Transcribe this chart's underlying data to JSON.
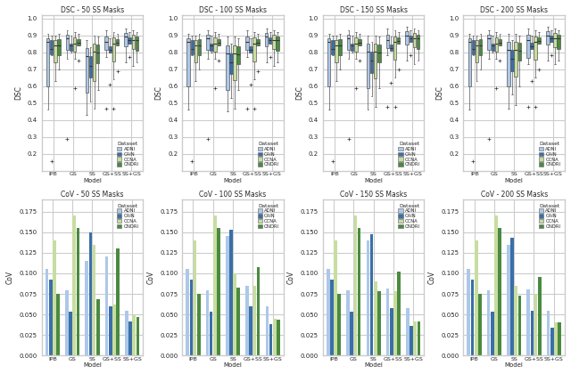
{
  "titles_top": [
    "DSC - 50 SS Masks",
    "DSC - 100 SS Masks",
    "DSC - 150 SS Masks",
    "DSC - 200 SS Masks"
  ],
  "titles_bot": [
    "CoV - 50 SS Masks",
    "CoV - 100 SS Masks",
    "CoV - 150 SS Masks",
    "CoV - 200 SS Masks"
  ],
  "models": [
    "IPB",
    "GS",
    "SS",
    "GS+SS",
    "SS+GS"
  ],
  "datasets": [
    "ADNI",
    "CAIN",
    "CCNA",
    "ONDRI"
  ],
  "colors": [
    "#adc8e8",
    "#3a6fa8",
    "#c8dda0",
    "#4a8a40"
  ],
  "ylabel_top": "DSC",
  "ylabel_bot": "CoV",
  "xlabel": "Model",
  "dsc_ylim": [
    0.1,
    1.02
  ],
  "dsc_yticks": [
    0.2,
    0.3,
    0.4,
    0.5,
    0.6,
    0.7,
    0.8,
    0.9,
    1.0
  ],
  "dsc_data": {
    "50": {
      "IPB": {
        "ADNI": [
          0.88,
          0.84,
          0.86,
          0.87,
          0.89,
          0.91,
          0.58,
          0.6,
          0.46
        ],
        "CAIN": [
          0.88,
          0.8,
          0.78,
          0.82,
          0.86,
          0.9,
          0.16
        ],
        "CCNA": [
          0.87,
          0.83,
          0.85,
          0.88,
          0.9,
          0.75,
          0.72,
          0.63
        ],
        "ONDRI": [
          0.87,
          0.83,
          0.84,
          0.88,
          0.91,
          0.74,
          0.7
        ]
      },
      "GS": {
        "ADNI": [
          0.9,
          0.87,
          0.88,
          0.91,
          0.93,
          0.76,
          0.29
        ],
        "CAIN": [
          0.84,
          0.8,
          0.81,
          0.85,
          0.9
        ],
        "CCNA": [
          0.88,
          0.85,
          0.85,
          0.89,
          0.92,
          0.76,
          0.59
        ],
        "ONDRI": [
          0.87,
          0.84,
          0.84,
          0.88,
          0.91,
          0.75
        ]
      },
      "SS": {
        "ADNI": [
          0.82,
          0.78,
          0.77,
          0.83,
          0.87,
          0.57,
          0.53,
          0.43
        ],
        "CAIN": [
          0.77,
          0.72,
          0.71,
          0.78,
          0.83,
          0.59,
          0.51
        ],
        "CCNA": [
          0.85,
          0.81,
          0.8,
          0.86,
          0.9,
          0.65,
          0.57,
          0.47
        ],
        "ONDRI": [
          0.84,
          0.8,
          0.79,
          0.85,
          0.89,
          0.68,
          0.58
        ]
      },
      "GS+SS": {
        "ADNI": [
          0.89,
          0.86,
          0.86,
          0.9,
          0.93,
          0.77,
          0.47
        ],
        "CAIN": [
          0.83,
          0.8,
          0.8,
          0.84,
          0.88,
          0.61
        ],
        "CCNA": [
          0.88,
          0.85,
          0.85,
          0.89,
          0.92,
          0.64,
          0.47
        ],
        "ONDRI": [
          0.87,
          0.84,
          0.84,
          0.88,
          0.91,
          0.69
        ]
      },
      "SS+GS": {
        "ADNI": [
          0.91,
          0.88,
          0.89,
          0.92,
          0.94,
          0.79,
          0.74
        ],
        "CAIN": [
          0.88,
          0.85,
          0.86,
          0.89,
          0.92,
          0.77
        ],
        "CCNA": [
          0.9,
          0.87,
          0.87,
          0.91,
          0.93,
          0.77,
          0.72
        ],
        "ONDRI": [
          0.89,
          0.86,
          0.87,
          0.9,
          0.92,
          0.76,
          0.74
        ]
      }
    },
    "100": {
      "IPB": {
        "ADNI": [
          0.88,
          0.84,
          0.86,
          0.87,
          0.89,
          0.91,
          0.58,
          0.6,
          0.46
        ],
        "CAIN": [
          0.88,
          0.8,
          0.78,
          0.82,
          0.86,
          0.9,
          0.16
        ],
        "CCNA": [
          0.87,
          0.83,
          0.85,
          0.88,
          0.9,
          0.75,
          0.72,
          0.63
        ],
        "ONDRI": [
          0.87,
          0.83,
          0.84,
          0.88,
          0.91,
          0.74,
          0.7
        ]
      },
      "GS": {
        "ADNI": [
          0.9,
          0.87,
          0.88,
          0.91,
          0.93,
          0.76,
          0.29
        ],
        "CAIN": [
          0.84,
          0.8,
          0.81,
          0.85,
          0.9
        ],
        "CCNA": [
          0.88,
          0.85,
          0.85,
          0.89,
          0.92,
          0.76,
          0.59
        ],
        "ONDRI": [
          0.87,
          0.84,
          0.84,
          0.88,
          0.91,
          0.75
        ]
      },
      "SS": {
        "ADNI": [
          0.84,
          0.8,
          0.79,
          0.85,
          0.89,
          0.59,
          0.55,
          0.45
        ],
        "CAIN": [
          0.79,
          0.74,
          0.73,
          0.8,
          0.85,
          0.61,
          0.53
        ],
        "CCNA": [
          0.84,
          0.8,
          0.79,
          0.85,
          0.89,
          0.65,
          0.59,
          0.47
        ],
        "ONDRI": [
          0.83,
          0.79,
          0.78,
          0.84,
          0.88,
          0.68,
          0.58
        ]
      },
      "GS+SS": {
        "ADNI": [
          0.89,
          0.86,
          0.86,
          0.9,
          0.93,
          0.77,
          0.47
        ],
        "CAIN": [
          0.83,
          0.8,
          0.8,
          0.84,
          0.88,
          0.61
        ],
        "CCNA": [
          0.88,
          0.85,
          0.85,
          0.89,
          0.92,
          0.64,
          0.47
        ],
        "ONDRI": [
          0.87,
          0.84,
          0.84,
          0.88,
          0.91,
          0.69
        ]
      },
      "SS+GS": {
        "ADNI": [
          0.91,
          0.88,
          0.89,
          0.92,
          0.94,
          0.79,
          0.74
        ],
        "CAIN": [
          0.88,
          0.85,
          0.86,
          0.89,
          0.92,
          0.77
        ],
        "CCNA": [
          0.9,
          0.87,
          0.87,
          0.91,
          0.93,
          0.77,
          0.72
        ],
        "ONDRI": [
          0.89,
          0.86,
          0.87,
          0.9,
          0.92,
          0.76,
          0.74
        ]
      }
    },
    "150": {
      "IPB": {
        "ADNI": [
          0.88,
          0.84,
          0.86,
          0.87,
          0.89,
          0.91,
          0.58,
          0.6,
          0.46
        ],
        "CAIN": [
          0.88,
          0.8,
          0.78,
          0.82,
          0.86,
          0.9,
          0.16
        ],
        "CCNA": [
          0.87,
          0.83,
          0.85,
          0.88,
          0.9,
          0.75,
          0.72,
          0.63
        ],
        "ONDRI": [
          0.87,
          0.83,
          0.84,
          0.88,
          0.91,
          0.74,
          0.7
        ]
      },
      "GS": {
        "ADNI": [
          0.9,
          0.87,
          0.88,
          0.91,
          0.93,
          0.76,
          0.29
        ],
        "CAIN": [
          0.84,
          0.8,
          0.81,
          0.85,
          0.9
        ],
        "CCNA": [
          0.88,
          0.85,
          0.85,
          0.89,
          0.92,
          0.76,
          0.59
        ],
        "ONDRI": [
          0.87,
          0.84,
          0.84,
          0.88,
          0.91,
          0.75
        ]
      },
      "SS": {
        "ADNI": [
          0.85,
          0.81,
          0.8,
          0.86,
          0.9,
          0.6,
          0.56,
          0.46
        ],
        "CAIN": [
          0.8,
          0.75,
          0.74,
          0.81,
          0.86,
          0.62,
          0.54
        ],
        "CCNA": [
          0.85,
          0.81,
          0.8,
          0.86,
          0.9,
          0.66,
          0.6,
          0.48
        ],
        "ONDRI": [
          0.84,
          0.8,
          0.79,
          0.85,
          0.89,
          0.69,
          0.59
        ]
      },
      "GS+SS": {
        "ADNI": [
          0.9,
          0.87,
          0.87,
          0.91,
          0.94,
          0.78,
          0.48
        ],
        "CAIN": [
          0.84,
          0.81,
          0.81,
          0.85,
          0.89,
          0.62
        ],
        "CCNA": [
          0.89,
          0.86,
          0.86,
          0.9,
          0.93,
          0.65,
          0.48
        ],
        "ONDRI": [
          0.88,
          0.85,
          0.85,
          0.89,
          0.92,
          0.7
        ]
      },
      "SS+GS": {
        "ADNI": [
          0.92,
          0.89,
          0.9,
          0.93,
          0.95,
          0.8,
          0.75
        ],
        "CAIN": [
          0.89,
          0.86,
          0.87,
          0.9,
          0.93,
          0.78
        ],
        "CCNA": [
          0.91,
          0.88,
          0.88,
          0.92,
          0.94,
          0.78,
          0.73
        ],
        "ONDRI": [
          0.9,
          0.87,
          0.88,
          0.91,
          0.93,
          0.77,
          0.75
        ]
      }
    },
    "200": {
      "IPB": {
        "ADNI": [
          0.88,
          0.84,
          0.86,
          0.87,
          0.89,
          0.91,
          0.58,
          0.6,
          0.46
        ],
        "CAIN": [
          0.88,
          0.8,
          0.78,
          0.82,
          0.86,
          0.9,
          0.16
        ],
        "CCNA": [
          0.87,
          0.83,
          0.85,
          0.88,
          0.9,
          0.75,
          0.72,
          0.63
        ],
        "ONDRI": [
          0.87,
          0.83,
          0.84,
          0.88,
          0.91,
          0.74,
          0.7
        ]
      },
      "GS": {
        "ADNI": [
          0.9,
          0.87,
          0.88,
          0.91,
          0.93,
          0.76,
          0.29
        ],
        "CAIN": [
          0.84,
          0.8,
          0.81,
          0.85,
          0.9
        ],
        "CCNA": [
          0.88,
          0.85,
          0.85,
          0.89,
          0.92,
          0.76,
          0.59
        ],
        "ONDRI": [
          0.87,
          0.84,
          0.84,
          0.88,
          0.91,
          0.75
        ]
      },
      "SS": {
        "ADNI": [
          0.86,
          0.82,
          0.81,
          0.87,
          0.91,
          0.61,
          0.57,
          0.47
        ],
        "CAIN": [
          0.81,
          0.76,
          0.75,
          0.82,
          0.87,
          0.63,
          0.55
        ],
        "CCNA": [
          0.86,
          0.82,
          0.81,
          0.87,
          0.91,
          0.67,
          0.61,
          0.49
        ],
        "ONDRI": [
          0.85,
          0.81,
          0.8,
          0.86,
          0.9,
          0.7,
          0.6
        ]
      },
      "GS+SS": {
        "ADNI": [
          0.9,
          0.87,
          0.87,
          0.91,
          0.94,
          0.78,
          0.73,
          0.48
        ],
        "CAIN": [
          0.85,
          0.82,
          0.82,
          0.86,
          0.9,
          0.63
        ],
        "CCNA": [
          0.89,
          0.86,
          0.86,
          0.9,
          0.93,
          0.65,
          0.48
        ],
        "ONDRI": [
          0.88,
          0.85,
          0.85,
          0.89,
          0.92,
          0.7
        ]
      },
      "SS+GS": {
        "ADNI": [
          0.92,
          0.89,
          0.9,
          0.93,
          0.95,
          0.8,
          0.75
        ],
        "CAIN": [
          0.89,
          0.86,
          0.87,
          0.9,
          0.93,
          0.78
        ],
        "CCNA": [
          0.91,
          0.88,
          0.88,
          0.92,
          0.94,
          0.78,
          0.73
        ],
        "ONDRI": [
          0.9,
          0.87,
          0.88,
          0.91,
          0.93,
          0.77,
          0.75
        ]
      }
    }
  },
  "cov_data": {
    "50": {
      "IPB": {
        "ADNI": 0.105,
        "CAIN": 0.092,
        "CCNA": 0.14,
        "ONDRI": 0.075
      },
      "GS": {
        "ADNI": 0.079,
        "CAIN": 0.053,
        "CCNA": 0.17,
        "ONDRI": 0.155
      },
      "SS": {
        "ADNI": 0.115,
        "CAIN": 0.15,
        "CCNA": 0.135,
        "ONDRI": 0.069
      },
      "GS+SS": {
        "ADNI": 0.121,
        "CAIN": 0.06,
        "CCNA": 0.062,
        "ONDRI": 0.13
      },
      "SS+GS": {
        "ADNI": 0.055,
        "CAIN": 0.042,
        "CCNA": 0.049,
        "ONDRI": 0.047
      }
    },
    "100": {
      "IPB": {
        "ADNI": 0.105,
        "CAIN": 0.092,
        "CCNA": 0.14,
        "ONDRI": 0.075
      },
      "GS": {
        "ADNI": 0.079,
        "CAIN": 0.053,
        "CCNA": 0.17,
        "ONDRI": 0.155
      },
      "SS": {
        "ADNI": 0.146,
        "CAIN": 0.153,
        "CCNA": 0.1,
        "ONDRI": 0.083
      },
      "GS+SS": {
        "ADNI": 0.085,
        "CAIN": 0.06,
        "CCNA": 0.085,
        "ONDRI": 0.108
      },
      "SS+GS": {
        "ADNI": 0.06,
        "CAIN": 0.038,
        "CCNA": 0.045,
        "ONDRI": 0.044
      }
    },
    "150": {
      "IPB": {
        "ADNI": 0.105,
        "CAIN": 0.092,
        "CCNA": 0.14,
        "ONDRI": 0.075
      },
      "GS": {
        "ADNI": 0.079,
        "CAIN": 0.053,
        "CCNA": 0.17,
        "ONDRI": 0.155
      },
      "SS": {
        "ADNI": 0.14,
        "CAIN": 0.148,
        "CCNA": 0.09,
        "ONDRI": 0.078
      },
      "GS+SS": {
        "ADNI": 0.082,
        "CAIN": 0.058,
        "CCNA": 0.078,
        "ONDRI": 0.102
      },
      "SS+GS": {
        "ADNI": 0.058,
        "CAIN": 0.036,
        "CCNA": 0.042,
        "ONDRI": 0.042
      }
    },
    "200": {
      "IPB": {
        "ADNI": 0.105,
        "CAIN": 0.092,
        "CCNA": 0.14,
        "ONDRI": 0.075
      },
      "GS": {
        "ADNI": 0.079,
        "CAIN": 0.053,
        "CCNA": 0.17,
        "ONDRI": 0.155
      },
      "SS": {
        "ADNI": 0.135,
        "CAIN": 0.143,
        "CCNA": 0.085,
        "ONDRI": 0.073
      },
      "GS+SS": {
        "ADNI": 0.08,
        "CAIN": 0.055,
        "CCNA": 0.075,
        "ONDRI": 0.096
      },
      "SS+GS": {
        "ADNI": 0.055,
        "CAIN": 0.034,
        "CCNA": 0.04,
        "ONDRI": 0.04
      }
    }
  }
}
